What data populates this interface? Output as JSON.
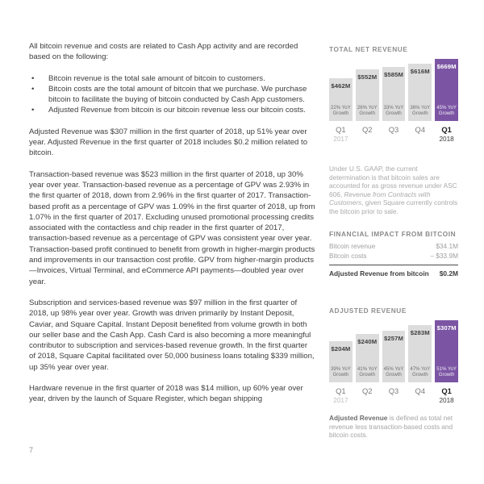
{
  "page": {
    "number": "7",
    "background": "#ffffff"
  },
  "article": {
    "intro": "All bitcoin revenue and costs are related to Cash App activity and are recorded based on the following:",
    "bullets": [
      "Bitcoin revenue is the total sale amount of bitcoin to customers.",
      "Bitcoin costs are the total amount of bitcoin that we purchase. We purchase bitcoin to facilitate the buying of bitcoin conducted by Cash App customers.",
      "Adjusted Revenue from bitcoin is our bitcoin revenue less our bitcoin costs."
    ],
    "paragraphs": [
      "Adjusted Revenue was $307 million in the first quarter of 2018, up 51% year over year. Adjusted Revenue in the first quarter of 2018 includes $0.2 million related to bitcoin.",
      "Transaction-based revenue was $523 million in the first quarter of 2018, up 30% year over year. Transaction-based revenue as a percentage of GPV was 2.93% in the first quarter of 2018, down from 2.96% in the first quarter of 2017. Transaction-based profit as a percentage of GPV was 1.09% in the first quarter of 2018, up from 1.07% in the first quarter of 2017. Excluding unused promotional processing credits associated with the contactless and chip reader in the first quarter of 2017, transaction-based revenue as a percentage of GPV was consistent year over year. Transaction-based profit continued to benefit from growth in higher-margin products and improvements in our transaction cost profile. GPV from higher-margin products—Invoices, Virtual Terminal, and eCommerce API payments—doubled year over year.",
      "Subscription and services-based revenue was $97 million in the first quarter of 2018, up 98% year over year. Growth was driven primarily by Instant Deposit, Caviar, and Square Capital. Instant Deposit benefited from volume growth in both our seller base and the Cash App. Cash Card is also becoming a more meaningful contributor to subscription and services-based revenue growth. In the first quarter of 2018, Square Capital facilitated over 50,000 business loans totaling $339 million, up 35% year over year.",
      "Hardware revenue in the first quarter of 2018 was $14 million, up 60% year over year, driven by the launch of Square Register, which began shipping"
    ]
  },
  "sidebar": {
    "gaap_note": {
      "prefix": "Under U.S. GAAP, the current determination is that bitcoin sales are accounted for as gross revenue under ASC 606, ",
      "italic": "Revenue from Contracts with Customers",
      "suffix": ", given Square currently controls the bitcoin prior to sale."
    },
    "financial_impact": {
      "title": "FINANCIAL IMPACT FROM BITCOIN",
      "rows": [
        {
          "label": "Bitcoin revenue",
          "value": "$34.1M"
        },
        {
          "label": "Bitcoin costs",
          "value": "– $33.9M"
        }
      ],
      "total": {
        "label": "Adjusted Revenue from bitcoin",
        "value": "$0.2M"
      }
    },
    "adjusted_note": {
      "bold": "Adjusted Revenue",
      "suffix": " is defined as total net revenue less transaction-based costs and bitcoin costs."
    }
  },
  "colors": {
    "accent_purple": "#7b55a3",
    "bar_gray": "#dcdcdd",
    "body_text": "#3d3d3d",
    "note_text": "#a9a9a9"
  },
  "chart_data": [
    {
      "type": "bar",
      "title": "TOTAL NET REVENUE",
      "unit": "USD millions",
      "categories": [
        "Q1",
        "Q2",
        "Q3",
        "Q4",
        "Q1"
      ],
      "category_years": [
        "2017",
        "",
        "",
        "",
        "2018"
      ],
      "values": [
        462,
        552,
        585,
        616,
        669
      ],
      "value_labels": [
        "$462M",
        "$552M",
        "$585M",
        "$616M",
        "$669M"
      ],
      "growth_labels": [
        "22% YoY Growth",
        "26% YoY Growth",
        "33% YoY Growth",
        "36% YoY Growth",
        "45% YoY Growth"
      ],
      "highlight_index": 4,
      "ylim": [
        0,
        669
      ],
      "legend": "none",
      "grid": false
    },
    {
      "type": "bar",
      "title": "ADJUSTED REVENUE",
      "unit": "USD millions",
      "categories": [
        "Q1",
        "Q2",
        "Q3",
        "Q4",
        "Q1"
      ],
      "category_years": [
        "2017",
        "",
        "",
        "",
        "2018"
      ],
      "values": [
        204,
        240,
        257,
        283,
        307
      ],
      "value_labels": [
        "$204M",
        "$240M",
        "$257M",
        "$283M",
        "$307M"
      ],
      "growth_labels": [
        "39% YoY Growth",
        "41% YoY Growth",
        "45% YoY Growth",
        "47% YoY Growth",
        "51% YoY Growth"
      ],
      "highlight_index": 4,
      "ylim": [
        0,
        669
      ],
      "legend": "none",
      "grid": false
    }
  ]
}
